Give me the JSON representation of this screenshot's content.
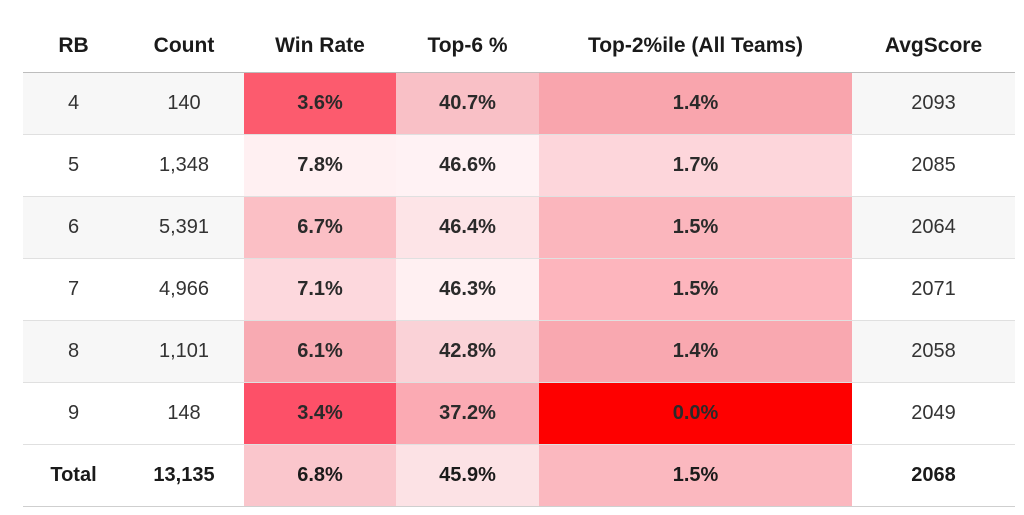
{
  "chart_data": {
    "type": "table",
    "columns": [
      "RB",
      "Count",
      "Win Rate",
      "Top-6 %",
      "Top-2%ile (All Teams)",
      "AvgScore"
    ],
    "rows": [
      {
        "rb": "4",
        "count": "140",
        "win_rate": "3.6%",
        "top6": "40.7%",
        "top2": "1.4%",
        "avg": "2093",
        "colors": {
          "win_rate": "#fc5b6e",
          "top6": "#f9c0c6",
          "top2": "#f9a5ad"
        }
      },
      {
        "rb": "5",
        "count": "1,348",
        "win_rate": "7.8%",
        "top6": "46.6%",
        "top2": "1.7%",
        "avg": "2085",
        "colors": {
          "win_rate": "#fff0f2",
          "top6": "#fff2f4",
          "top2": "#fdd6db"
        }
      },
      {
        "rb": "6",
        "count": "5,391",
        "win_rate": "6.7%",
        "top6": "46.4%",
        "top2": "1.5%",
        "avg": "2064",
        "colors": {
          "win_rate": "#fbbfc5",
          "top6": "#fde4e7",
          "top2": "#fbb6bd"
        }
      },
      {
        "rb": "7",
        "count": "4,966",
        "win_rate": "7.1%",
        "top6": "46.3%",
        "top2": "1.5%",
        "avg": "2071",
        "colors": {
          "win_rate": "#fdd8dd",
          "top6": "#fff0f2",
          "top2": "#fdb5bd"
        }
      },
      {
        "rb": "8",
        "count": "1,101",
        "win_rate": "6.1%",
        "top6": "42.8%",
        "top2": "1.4%",
        "avg": "2058",
        "colors": {
          "win_rate": "#f8aab2",
          "top6": "#fad2d7",
          "top2": "#f9a8b0"
        }
      },
      {
        "rb": "9",
        "count": "148",
        "win_rate": "3.4%",
        "top6": "37.2%",
        "top2": "0.0%",
        "avg": "2049",
        "colors": {
          "win_rate": "#fd5068",
          "top6": "#fbaab3",
          "top2": "#fe0000"
        }
      }
    ],
    "total": {
      "rb": "Total",
      "count": "13,135",
      "win_rate": "6.8%",
      "top6": "45.9%",
      "top2": "1.5%",
      "avg": "2068",
      "colors": {
        "win_rate": "#fac6cc",
        "top6": "#fce2e5",
        "top2": "#fbb8bf"
      }
    }
  }
}
